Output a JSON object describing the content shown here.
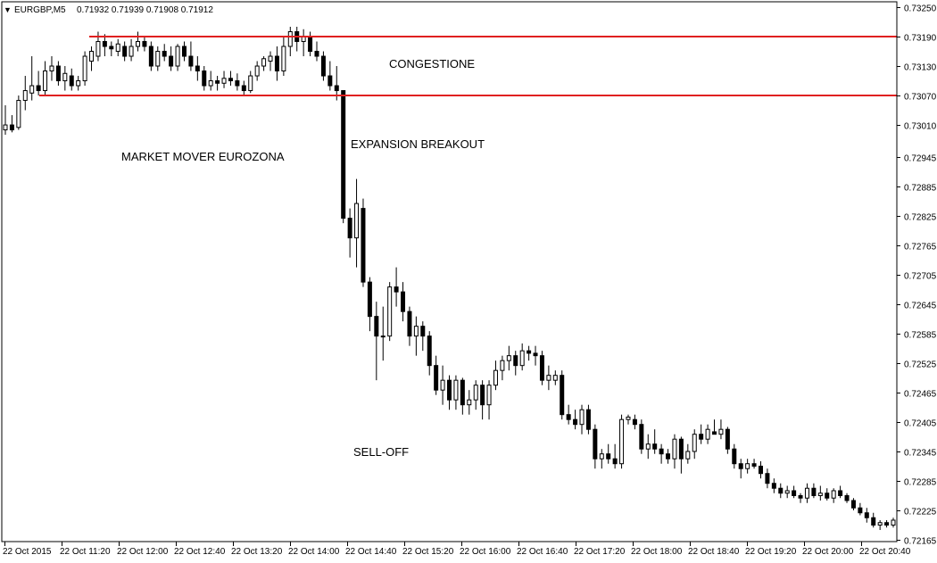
{
  "header": {
    "symbol_tf": "EURGBP,M5",
    "ohlc": "0.71932 0.71939 0.71908 0.71912"
  },
  "annotations": {
    "congestione": "CONGESTIONE",
    "expansion": "EXPANSION BREAKOUT",
    "market_mover": "MARKET MOVER EUROZONA",
    "sell_off": "SELL-OFF"
  },
  "colors": {
    "background": "#ffffff",
    "candle_bull_fill": "#ffffff",
    "candle_bear_fill": "#000000",
    "candle_outline": "#000000",
    "level_line": "#e02020",
    "axis_text": "#000000"
  },
  "chart_data": {
    "type": "candlestick",
    "symbol": "EURGBP",
    "timeframe": "M5",
    "y_ticks": [
      0.7325,
      0.7319,
      0.7313,
      0.7307,
      0.7301,
      0.72945,
      0.72885,
      0.72825,
      0.72765,
      0.72705,
      0.72645,
      0.72585,
      0.72525,
      0.72465,
      0.72405,
      0.72345,
      0.72285,
      0.72225,
      0.72165
    ],
    "ylim": [
      0.7216,
      0.73255
    ],
    "x_ticks": [
      "22 Oct 2015",
      "22 Oct 11:20",
      "22 Oct 12:00",
      "22 Oct 12:40",
      "22 Oct 13:20",
      "22 Oct 14:00",
      "22 Oct 14:40",
      "22 Oct 15:20",
      "22 Oct 16:00",
      "22 Oct 16:40",
      "22 Oct 17:20",
      "22 Oct 18:00",
      "22 Oct 18:40",
      "22 Oct 19:20",
      "22 Oct 20:00",
      "22 Oct 20:40"
    ],
    "levels": [
      0.7319,
      0.7307
    ],
    "candles": [
      [
        0.73,
        0.7305,
        0.7299,
        0.7301
      ],
      [
        0.7301,
        0.7303,
        0.72995,
        0.73
      ],
      [
        0.73005,
        0.7307,
        0.73,
        0.7306
      ],
      [
        0.7306,
        0.7311,
        0.7304,
        0.7308
      ],
      [
        0.73075,
        0.7315,
        0.7306,
        0.7309
      ],
      [
        0.7309,
        0.7312,
        0.7307,
        0.7308
      ],
      [
        0.7308,
        0.7314,
        0.7307,
        0.7312
      ],
      [
        0.7312,
        0.7315,
        0.731,
        0.7313
      ],
      [
        0.7313,
        0.7314,
        0.7309,
        0.731
      ],
      [
        0.731,
        0.7313,
        0.7308,
        0.73115
      ],
      [
        0.7311,
        0.73125,
        0.7308,
        0.7309
      ],
      [
        0.7309,
        0.7311,
        0.7308,
        0.731
      ],
      [
        0.731,
        0.7316,
        0.7309,
        0.7315
      ],
      [
        0.7314,
        0.7317,
        0.7312,
        0.7316
      ],
      [
        0.7315,
        0.732,
        0.7314,
        0.7318
      ],
      [
        0.7318,
        0.73195,
        0.7315,
        0.7317
      ],
      [
        0.7317,
        0.7318,
        0.7315,
        0.73165
      ],
      [
        0.7316,
        0.73185,
        0.7315,
        0.73175
      ],
      [
        0.7317,
        0.7318,
        0.7314,
        0.7315
      ],
      [
        0.7315,
        0.73185,
        0.7314,
        0.7317
      ],
      [
        0.7317,
        0.732,
        0.7316,
        0.7318
      ],
      [
        0.7318,
        0.7319,
        0.7316,
        0.7317
      ],
      [
        0.7317,
        0.7318,
        0.7312,
        0.7313
      ],
      [
        0.7313,
        0.7317,
        0.7312,
        0.7316
      ],
      [
        0.7316,
        0.73175,
        0.7314,
        0.7315
      ],
      [
        0.7315,
        0.7317,
        0.7312,
        0.7313
      ],
      [
        0.7313,
        0.73175,
        0.7312,
        0.7317
      ],
      [
        0.7317,
        0.7318,
        0.7314,
        0.7315
      ],
      [
        0.7315,
        0.7318,
        0.7312,
        0.7313
      ],
      [
        0.7313,
        0.7315,
        0.731,
        0.7312
      ],
      [
        0.7312,
        0.7313,
        0.7308,
        0.7309
      ],
      [
        0.7309,
        0.7312,
        0.7308,
        0.731
      ],
      [
        0.731,
        0.7311,
        0.7308,
        0.73095
      ],
      [
        0.73095,
        0.7312,
        0.73085,
        0.73105
      ],
      [
        0.73105,
        0.7312,
        0.7309,
        0.731
      ],
      [
        0.731,
        0.73115,
        0.7308,
        0.7309
      ],
      [
        0.7309,
        0.731,
        0.7307,
        0.7308
      ],
      [
        0.7308,
        0.7312,
        0.73075,
        0.7311
      ],
      [
        0.7311,
        0.7314,
        0.731,
        0.7313
      ],
      [
        0.7313,
        0.7315,
        0.7312,
        0.73145
      ],
      [
        0.7314,
        0.7316,
        0.7312,
        0.7315
      ],
      [
        0.7315,
        0.7317,
        0.731,
        0.7312
      ],
      [
        0.7312,
        0.7319,
        0.7311,
        0.7317
      ],
      [
        0.7317,
        0.7321,
        0.7315,
        0.732
      ],
      [
        0.732,
        0.7321,
        0.7316,
        0.7318
      ],
      [
        0.7318,
        0.73205,
        0.7315,
        0.7319
      ],
      [
        0.7319,
        0.732,
        0.7315,
        0.7316
      ],
      [
        0.7316,
        0.7318,
        0.7314,
        0.7315
      ],
      [
        0.7315,
        0.7316,
        0.731,
        0.7311
      ],
      [
        0.7311,
        0.7314,
        0.7308,
        0.7309
      ],
      [
        0.7309,
        0.7313,
        0.7306,
        0.7308
      ],
      [
        0.7308,
        0.7308,
        0.7281,
        0.7282
      ],
      [
        0.7282,
        0.7284,
        0.7274,
        0.7278
      ],
      [
        0.7278,
        0.729,
        0.7272,
        0.7285
      ],
      [
        0.7284,
        0.7286,
        0.7268,
        0.7269
      ],
      [
        0.7269,
        0.727,
        0.7259,
        0.7262
      ],
      [
        0.7262,
        0.7265,
        0.7249,
        0.7258
      ],
      [
        0.7258,
        0.7264,
        0.7253,
        0.7258
      ],
      [
        0.7258,
        0.7269,
        0.7257,
        0.7268
      ],
      [
        0.7268,
        0.7272,
        0.7264,
        0.7267
      ],
      [
        0.7267,
        0.7269,
        0.7261,
        0.7263
      ],
      [
        0.7263,
        0.7264,
        0.7256,
        0.7258
      ],
      [
        0.7258,
        0.7262,
        0.7254,
        0.726
      ],
      [
        0.726,
        0.7261,
        0.7255,
        0.7258
      ],
      [
        0.7258,
        0.7259,
        0.725,
        0.7252
      ],
      [
        0.7252,
        0.7254,
        0.7246,
        0.7247
      ],
      [
        0.7247,
        0.7252,
        0.7244,
        0.7249
      ],
      [
        0.7249,
        0.725,
        0.7243,
        0.7245
      ],
      [
        0.7245,
        0.725,
        0.7243,
        0.7249
      ],
      [
        0.7249,
        0.72495,
        0.7242,
        0.7244
      ],
      [
        0.7244,
        0.7247,
        0.7242,
        0.7245
      ],
      [
        0.7245,
        0.7249,
        0.7243,
        0.7248
      ],
      [
        0.7248,
        0.7249,
        0.7241,
        0.7244
      ],
      [
        0.7244,
        0.7249,
        0.7241,
        0.7248
      ],
      [
        0.7248,
        0.7253,
        0.7247,
        0.7251
      ],
      [
        0.7251,
        0.7254,
        0.7249,
        0.7253
      ],
      [
        0.7253,
        0.7256,
        0.7251,
        0.7254
      ],
      [
        0.7254,
        0.7255,
        0.725,
        0.7252
      ],
      [
        0.7252,
        0.72565,
        0.7251,
        0.7255
      ],
      [
        0.7255,
        0.7256,
        0.7253,
        0.72545
      ],
      [
        0.72545,
        0.7256,
        0.7252,
        0.7254
      ],
      [
        0.7254,
        0.7255,
        0.7248,
        0.7249
      ],
      [
        0.7249,
        0.7252,
        0.7247,
        0.725
      ],
      [
        0.7249,
        0.7251,
        0.7248,
        0.725
      ],
      [
        0.725,
        0.7251,
        0.7241,
        0.7242
      ],
      [
        0.7242,
        0.7244,
        0.724,
        0.7241
      ],
      [
        0.7241,
        0.7243,
        0.7239,
        0.724
      ],
      [
        0.724,
        0.7244,
        0.7238,
        0.7243
      ],
      [
        0.7243,
        0.7244,
        0.7238,
        0.7239
      ],
      [
        0.7239,
        0.724,
        0.7231,
        0.7233
      ],
      [
        0.7233,
        0.7235,
        0.7231,
        0.7234
      ],
      [
        0.7234,
        0.7236,
        0.7232,
        0.7233
      ],
      [
        0.7233,
        0.7236,
        0.7231,
        0.7232
      ],
      [
        0.7232,
        0.7242,
        0.7231,
        0.7241
      ],
      [
        0.7241,
        0.7242,
        0.724,
        0.72415
      ],
      [
        0.7241,
        0.7242,
        0.7239,
        0.724
      ],
      [
        0.724,
        0.7241,
        0.7234,
        0.7235
      ],
      [
        0.7235,
        0.7238,
        0.7233,
        0.7236
      ],
      [
        0.7236,
        0.7239,
        0.7234,
        0.7235
      ],
      [
        0.7235,
        0.7236,
        0.7232,
        0.7234
      ],
      [
        0.7234,
        0.7235,
        0.7232,
        0.7233
      ],
      [
        0.7233,
        0.7238,
        0.7231,
        0.7237
      ],
      [
        0.7237,
        0.72375,
        0.723,
        0.7233
      ],
      [
        0.7233,
        0.7236,
        0.7232,
        0.72345
      ],
      [
        0.72345,
        0.7239,
        0.7233,
        0.7238
      ],
      [
        0.7238,
        0.724,
        0.7236,
        0.7237
      ],
      [
        0.7237,
        0.724,
        0.7236,
        0.7239
      ],
      [
        0.72385,
        0.7241,
        0.7238,
        0.7238
      ],
      [
        0.7238,
        0.7241,
        0.7237,
        0.7239
      ],
      [
        0.7239,
        0.72395,
        0.7234,
        0.7235
      ],
      [
        0.7235,
        0.7236,
        0.7231,
        0.7232
      ],
      [
        0.7232,
        0.7233,
        0.7229,
        0.7231
      ],
      [
        0.7231,
        0.7233,
        0.723,
        0.7232
      ],
      [
        0.7232,
        0.7233,
        0.7231,
        0.72315
      ],
      [
        0.72315,
        0.72325,
        0.7229,
        0.723
      ],
      [
        0.723,
        0.7231,
        0.7227,
        0.7228
      ],
      [
        0.7228,
        0.7229,
        0.7226,
        0.7227
      ],
      [
        0.7227,
        0.7228,
        0.7225,
        0.7226
      ],
      [
        0.7226,
        0.72275,
        0.7225,
        0.72265
      ],
      [
        0.72265,
        0.72275,
        0.7225,
        0.72255
      ],
      [
        0.72255,
        0.7226,
        0.7224,
        0.7225
      ],
      [
        0.7225,
        0.7228,
        0.7224,
        0.7227
      ],
      [
        0.7227,
        0.7228,
        0.7225,
        0.72255
      ],
      [
        0.72255,
        0.72275,
        0.72245,
        0.7226
      ],
      [
        0.7226,
        0.7227,
        0.72245,
        0.7225
      ],
      [
        0.7225,
        0.7227,
        0.7224,
        0.72265
      ],
      [
        0.72265,
        0.72275,
        0.7225,
        0.72255
      ],
      [
        0.72255,
        0.7226,
        0.7224,
        0.72245
      ],
      [
        0.72245,
        0.7225,
        0.72225,
        0.7223
      ],
      [
        0.7223,
        0.7224,
        0.72215,
        0.7222
      ],
      [
        0.7222,
        0.7223,
        0.722,
        0.7221
      ],
      [
        0.7221,
        0.7222,
        0.7219,
        0.72195
      ],
      [
        0.72195,
        0.72205,
        0.72185,
        0.722
      ],
      [
        0.722,
        0.72205,
        0.7219,
        0.72195
      ],
      [
        0.72195,
        0.7221,
        0.7219,
        0.72205
      ]
    ]
  }
}
